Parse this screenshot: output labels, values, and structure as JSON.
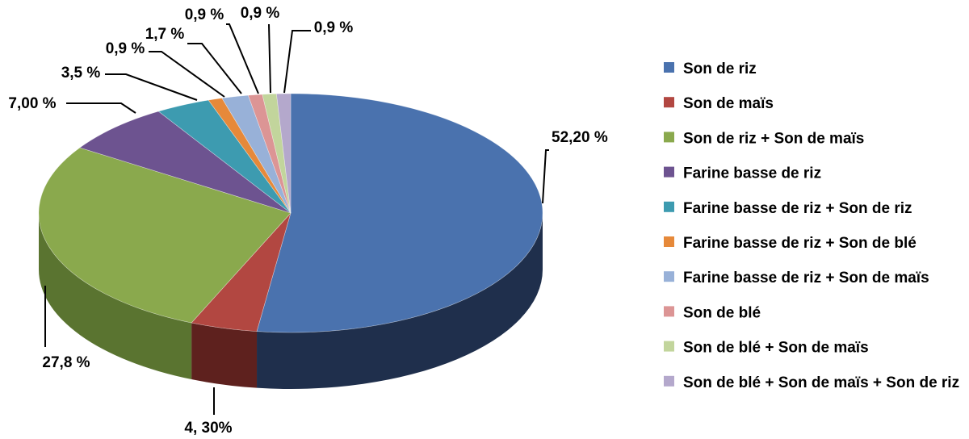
{
  "chart_data": {
    "type": "pie",
    "title": "",
    "legend_position": "right",
    "slices": [
      {
        "name": "Son de riz",
        "value": 52.2,
        "label": "52,20 %",
        "color": "#4a72ae",
        "dark": "#1f2f4c"
      },
      {
        "name": "Son de maïs",
        "value": 4.3,
        "label": "4, 30%",
        "color": "#b24741",
        "dark": "#5e211e"
      },
      {
        "name": "Son de riz + Son de maïs",
        "value": 27.8,
        "label": "27,8 %",
        "color": "#8aa94d",
        "dark": "#5a7430"
      },
      {
        "name": "Farine basse de riz",
        "value": 7.0,
        "label": "7,00 %",
        "color": "#6d5390",
        "dark": "#3d2d52"
      },
      {
        "name": "Farine basse de riz + Son de riz",
        "value": 3.5,
        "label": "3,5 %",
        "color": "#3d9bb0",
        "dark": "#1f5865"
      },
      {
        "name": "Farine basse de riz + Son de blé",
        "value": 0.9,
        "label": "0,9 %",
        "color": "#e6893a",
        "dark": "#8a4f1e"
      },
      {
        "name": "Farine basse de riz + Son de maïs",
        "value": 1.7,
        "label": "1,7 %",
        "color": "#98b1d8",
        "dark": "#5b6e8c"
      },
      {
        "name": "Son de blé",
        "value": 0.9,
        "label": "0,9 %",
        "color": "#dc9595",
        "dark": "#8a5454"
      },
      {
        "name": "Son de blé + Son de maïs",
        "value": 0.9,
        "label": "0,9 %",
        "color": "#c2d59c",
        "dark": "#7d8e5a"
      },
      {
        "name": "Son de blé + Son de maïs + Son de riz",
        "value": 0.9,
        "label": "0,9 %",
        "color": "#b4a8cc",
        "dark": "#6c6385"
      }
    ]
  }
}
